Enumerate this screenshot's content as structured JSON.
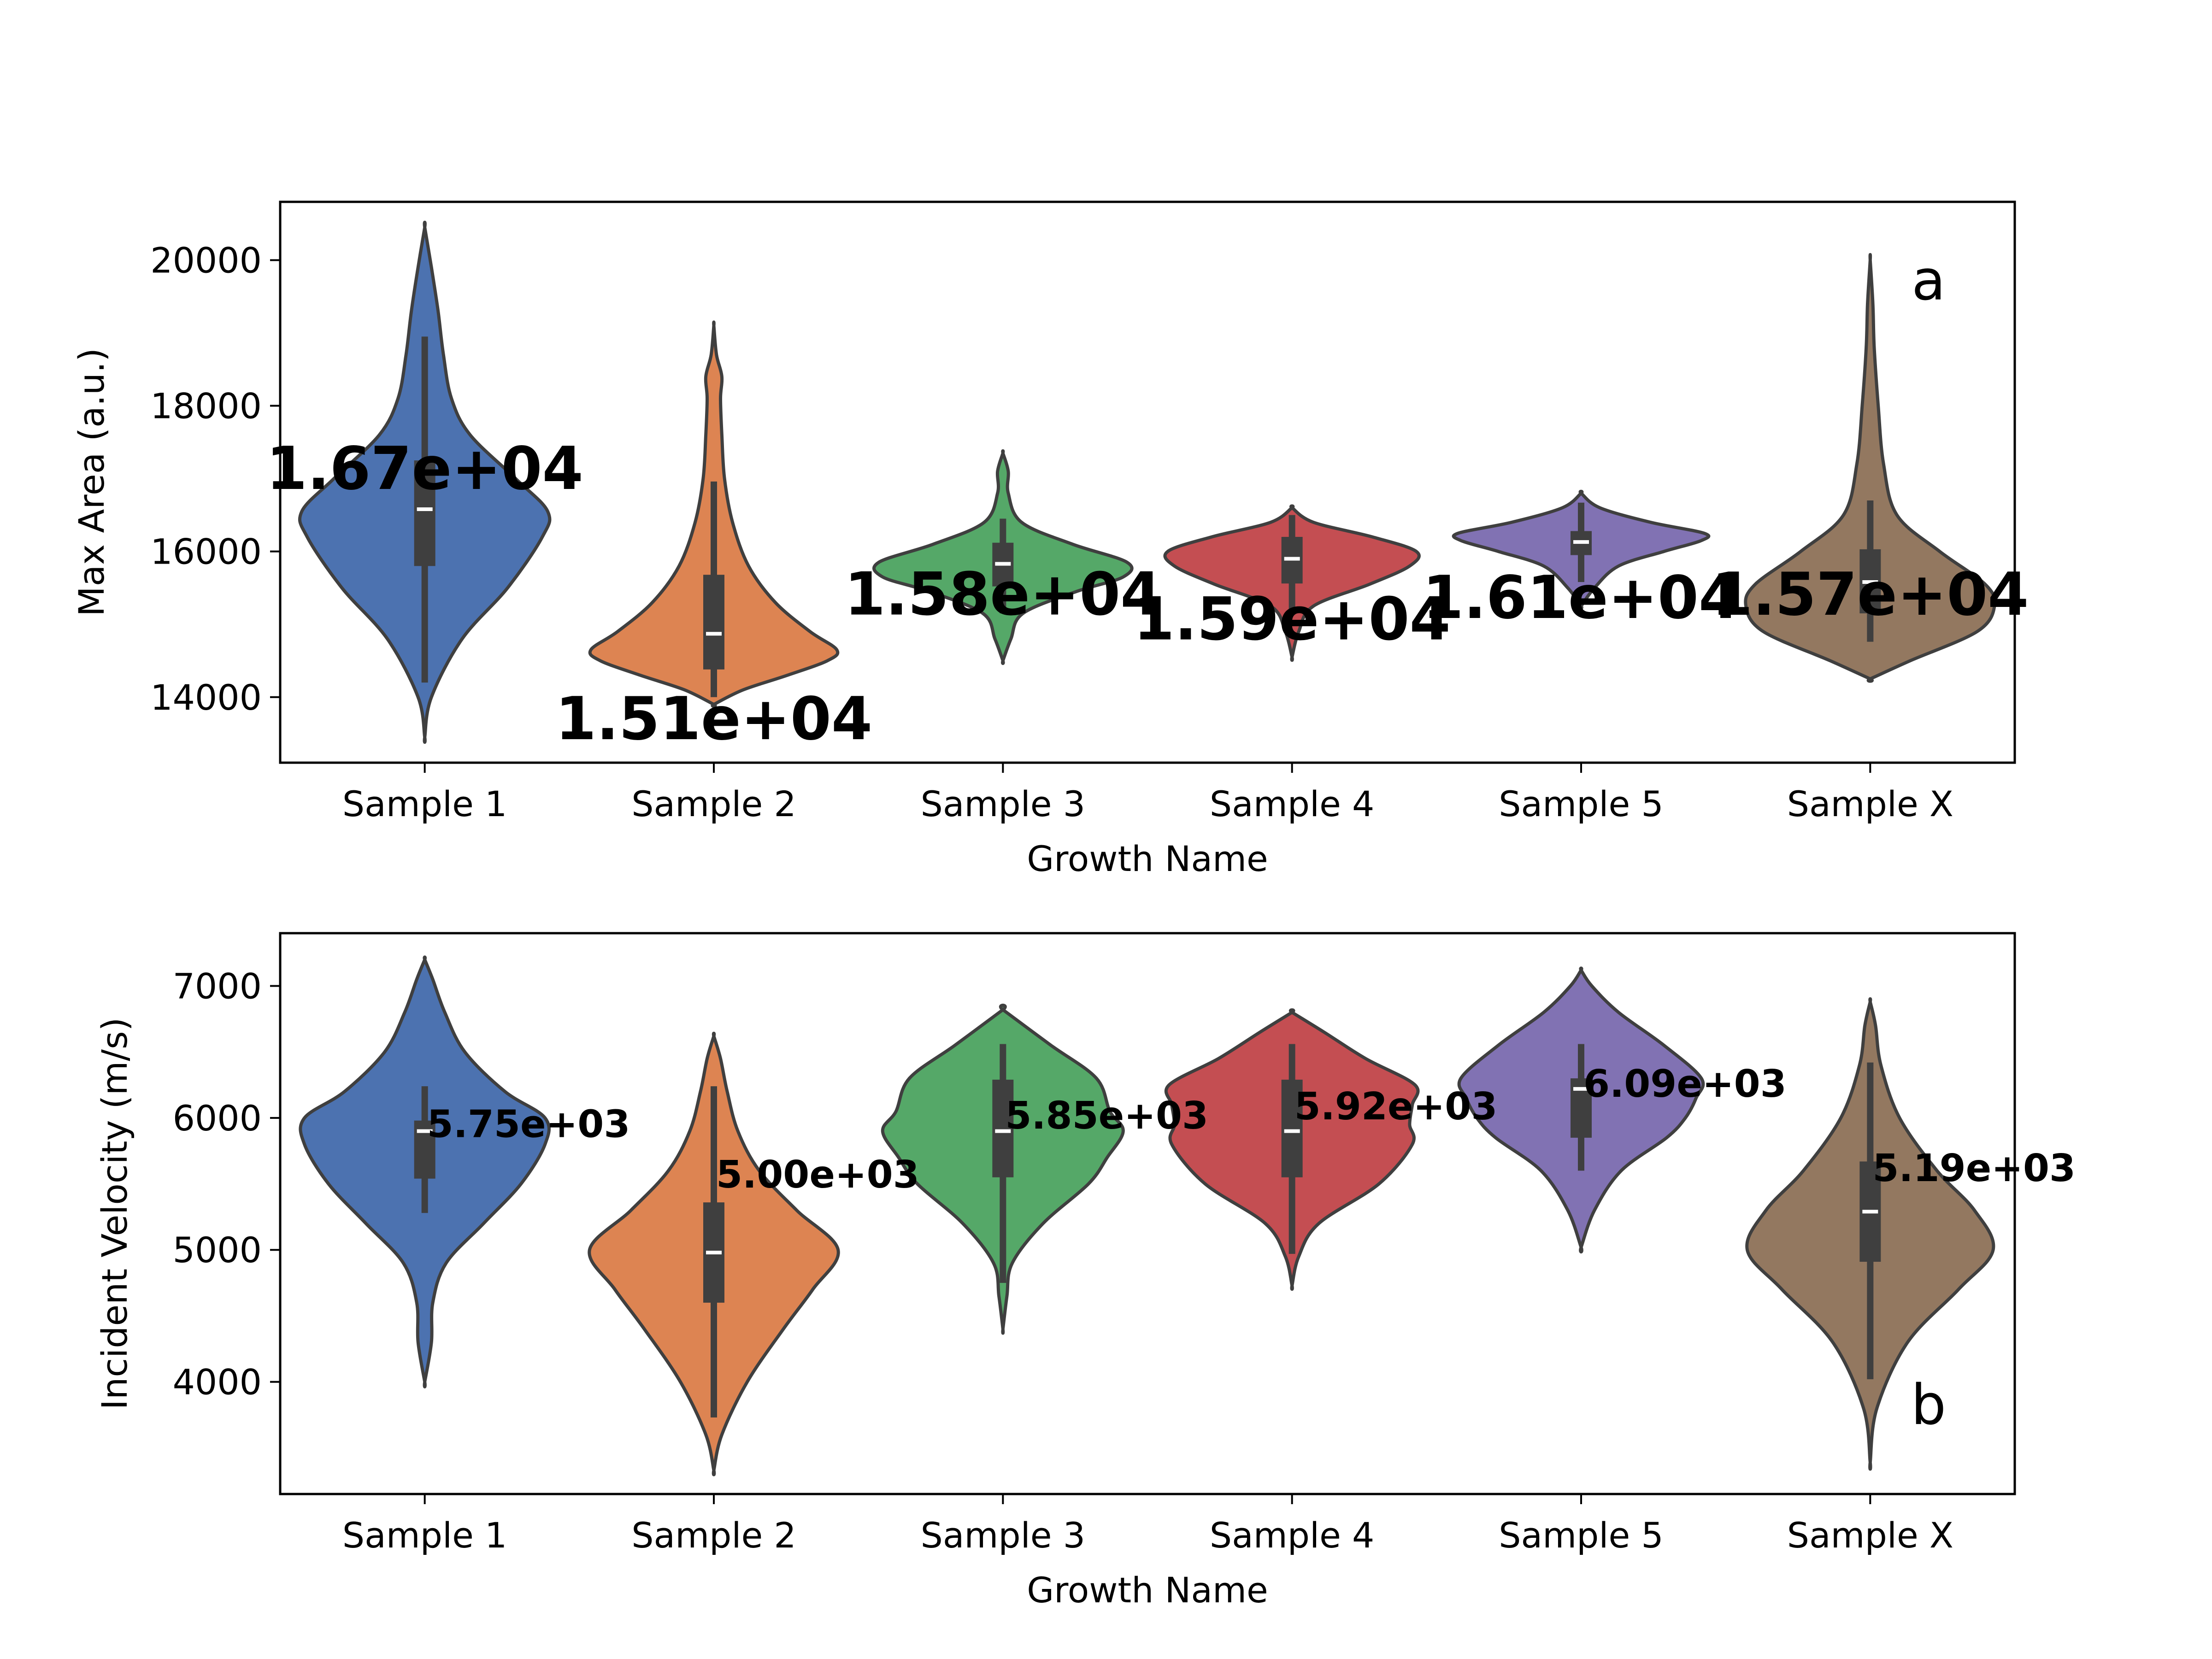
{
  "chart_data": [
    {
      "type": "violin",
      "panel_label": "a",
      "xlabel": "Growth Name",
      "ylabel": "Max Area (a.u.)",
      "categories": [
        "Sample 1",
        "Sample 2",
        "Sample 3",
        "Sample 4",
        "Sample 5",
        "Sample X"
      ],
      "colors": [
        "#4C72B0",
        "#DD8452",
        "#55A868",
        "#C44E52",
        "#8172B3",
        "#937860"
      ],
      "ylim": [
        13100,
        20800
      ],
      "yticks": [
        14000,
        16000,
        18000,
        20000
      ],
      "ytick_labels": [
        "14000",
        "16000",
        "18000",
        "20000"
      ],
      "mean_labels": [
        "1.67e+04",
        "1.51e+04",
        "1.58e+04",
        "1.59e+04",
        "1.61e+04",
        "1.57e+04"
      ],
      "means": [
        16700,
        15100,
        15800,
        15900,
        16100,
        15700
      ],
      "medians": [
        16580,
        14870,
        15830,
        15900,
        16130,
        15580
      ],
      "q1": [
        15800,
        14380,
        15520,
        15560,
        15950,
        15150
      ],
      "q3": [
        17250,
        15680,
        16120,
        16200,
        16280,
        16030
      ],
      "whisker_low": [
        14200,
        14000,
        15150,
        15180,
        15580,
        14760
      ],
      "whisker_high": [
        18950,
        16960,
        16450,
        16500,
        16670,
        16700
      ],
      "density": [
        {
          "y": [
            13450,
            14000,
            14800,
            15500,
            16200,
            16550,
            17000,
            17600,
            18100,
            18700,
            19300,
            19900,
            20450
          ],
          "w": [
            0.0,
            0.05,
            0.28,
            0.62,
            0.88,
            0.92,
            0.68,
            0.34,
            0.2,
            0.14,
            0.1,
            0.05,
            0.0
          ]
        },
        {
          "y": [
            13900,
            14100,
            14300,
            14500,
            14650,
            14900,
            15300,
            15800,
            16400,
            17000,
            17600,
            18100,
            18400,
            18700,
            19100
          ],
          "w": [
            0.0,
            0.22,
            0.55,
            0.85,
            0.92,
            0.72,
            0.46,
            0.26,
            0.14,
            0.08,
            0.06,
            0.05,
            0.06,
            0.02,
            0.0
          ]
        },
        {
          "y": [
            14500,
            14800,
            15150,
            15450,
            15650,
            15850,
            16100,
            16400,
            16800,
            17100,
            17350
          ],
          "w": [
            0.0,
            0.06,
            0.15,
            0.55,
            0.9,
            0.93,
            0.52,
            0.14,
            0.04,
            0.04,
            0.0
          ]
        },
        {
          "y": [
            14550,
            14900,
            15250,
            15550,
            15800,
            16000,
            16200,
            16400,
            16600
          ],
          "w": [
            0.0,
            0.05,
            0.16,
            0.58,
            0.88,
            0.93,
            0.6,
            0.16,
            0.0
          ]
        },
        {
          "y": [
            15250,
            15500,
            15800,
            16000,
            16150,
            16250,
            16400,
            16600,
            16800
          ],
          "w": [
            0.0,
            0.1,
            0.28,
            0.62,
            0.9,
            0.92,
            0.52,
            0.14,
            0.0
          ]
        },
        {
          "y": [
            14250,
            14500,
            14900,
            15250,
            15550,
            16000,
            16500,
            17200,
            18000,
            18800,
            19400,
            20000
          ],
          "w": [
            0.0,
            0.3,
            0.8,
            0.93,
            0.86,
            0.52,
            0.2,
            0.1,
            0.06,
            0.03,
            0.02,
            0.0
          ]
        }
      ]
    },
    {
      "type": "violin",
      "panel_label": "b",
      "xlabel": "Growth Name",
      "ylabel": "Incident Velocity (m/s)",
      "categories": [
        "Sample 1",
        "Sample 2",
        "Sample 3",
        "Sample 4",
        "Sample 5",
        "Sample X"
      ],
      "colors": [
        "#4C72B0",
        "#DD8452",
        "#55A868",
        "#C44E52",
        "#8172B3",
        "#937860"
      ],
      "ylim": [
        3150,
        7400
      ],
      "yticks": [
        4000,
        5000,
        6000,
        7000
      ],
      "ytick_labels": [
        "4000",
        "5000",
        "6000",
        "7000"
      ],
      "mean_labels": [
        "5.75e+03",
        "5.00e+03",
        "5.85e+03",
        "5.92e+03",
        "6.09e+03",
        "5.19e+03"
      ],
      "means": [
        5750,
        5000,
        5850,
        5920,
        6090,
        5190
      ],
      "medians": [
        5900,
        4980,
        5900,
        5900,
        6220,
        5290
      ],
      "q1": [
        5540,
        4600,
        5550,
        5550,
        5850,
        4910
      ],
      "q3": [
        5980,
        5360,
        6290,
        6290,
        6300,
        5670
      ],
      "whisker_low": [
        5280,
        3730,
        4750,
        4970,
        5600,
        4020
      ],
      "whisker_high": [
        6240,
        6240,
        6560,
        6560,
        6560,
        6420
      ],
      "density": [
        {
          "y": [
            4000,
            4300,
            4600,
            4900,
            5200,
            5500,
            5800,
            6000,
            6200,
            6500,
            6800,
            7050,
            7200
          ],
          "w": [
            0.0,
            0.05,
            0.06,
            0.16,
            0.44,
            0.72,
            0.9,
            0.9,
            0.6,
            0.3,
            0.15,
            0.06,
            0.0
          ]
        },
        {
          "y": [
            3330,
            3600,
            4000,
            4400,
            4700,
            5000,
            5300,
            5600,
            5900,
            6200,
            6450,
            6620
          ],
          "w": [
            0.0,
            0.06,
            0.25,
            0.52,
            0.74,
            0.93,
            0.62,
            0.34,
            0.18,
            0.1,
            0.05,
            0.0
          ]
        },
        {
          "y": [
            4400,
            4650,
            4900,
            5200,
            5500,
            5700,
            5900,
            6050,
            6300,
            6550,
            6820
          ],
          "w": [
            0.0,
            0.03,
            0.07,
            0.3,
            0.64,
            0.78,
            0.9,
            0.8,
            0.7,
            0.36,
            0.0
          ]
        },
        {
          "y": [
            4730,
            4950,
            5200,
            5500,
            5800,
            5950,
            6100,
            6250,
            6450,
            6650,
            6800
          ],
          "w": [
            0.0,
            0.05,
            0.2,
            0.65,
            0.9,
            0.88,
            0.9,
            0.92,
            0.55,
            0.24,
            0.0
          ]
        },
        {
          "y": [
            5020,
            5300,
            5600,
            5850,
            6000,
            6150,
            6300,
            6550,
            6800,
            7000,
            7120
          ],
          "w": [
            0.0,
            0.1,
            0.3,
            0.64,
            0.78,
            0.86,
            0.9,
            0.62,
            0.28,
            0.08,
            0.0
          ]
        },
        {
          "y": [
            3390,
            3800,
            4300,
            4700,
            5000,
            5300,
            5600,
            6000,
            6400,
            6700,
            6880
          ],
          "w": [
            0.0,
            0.05,
            0.28,
            0.66,
            0.92,
            0.78,
            0.5,
            0.22,
            0.08,
            0.04,
            0.0
          ]
        }
      ]
    }
  ]
}
